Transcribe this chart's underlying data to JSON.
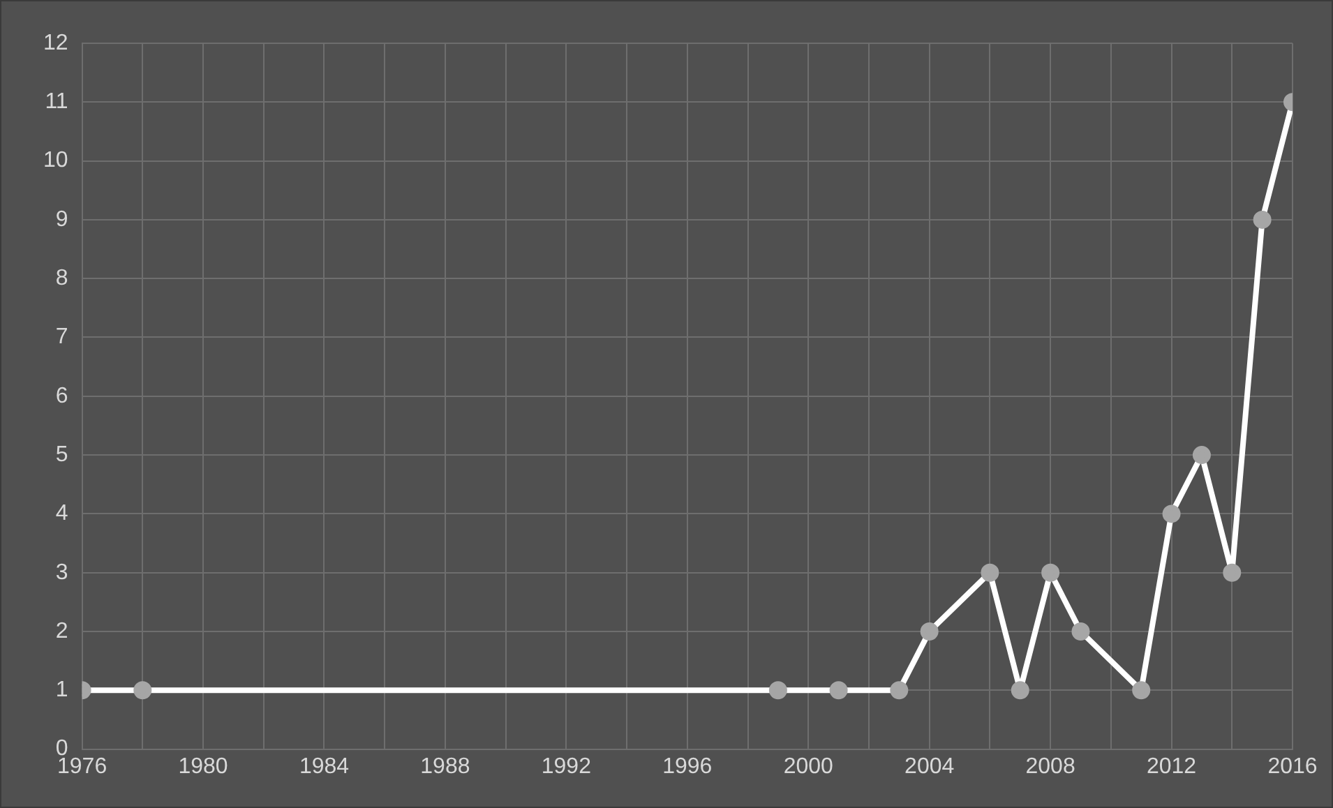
{
  "chart_data": {
    "type": "line",
    "x": [
      1976,
      1978,
      1999,
      2001,
      2003,
      2004,
      2006,
      2007,
      2008,
      2009,
      2011,
      2012,
      2013,
      2014,
      2015,
      2016
    ],
    "series": [
      {
        "color": "#ffffff",
        "values": [
          1,
          1,
          1,
          1,
          1,
          2,
          3,
          1,
          3,
          2,
          1,
          4,
          5,
          3,
          9,
          11
        ]
      }
    ],
    "xlim": [
      1976,
      2016
    ],
    "xticks": [
      1976,
      {
        "value": 1978,
        "label": null
      },
      1980,
      {
        "value": 1982,
        "label": null
      },
      1984,
      {
        "value": 1986,
        "label": null
      },
      1988,
      {
        "value": 1990,
        "label": null
      },
      1992,
      {
        "value": 1994,
        "label": null
      },
      1996,
      {
        "value": 1998,
        "label": null
      },
      2000,
      {
        "value": 2002,
        "label": null
      },
      2004,
      {
        "value": 2006,
        "label": null
      },
      2008,
      {
        "value": 2010,
        "label": null
      },
      2012,
      {
        "value": 2014,
        "label": null
      },
      2016
    ],
    "ylim": [
      0,
      12
    ],
    "yticks": [
      0,
      1,
      2,
      3,
      4,
      5,
      6,
      7,
      8,
      9,
      10,
      11,
      12
    ],
    "grid": true,
    "marker": "circle",
    "line_style": "solid",
    "legend": false
  }
}
